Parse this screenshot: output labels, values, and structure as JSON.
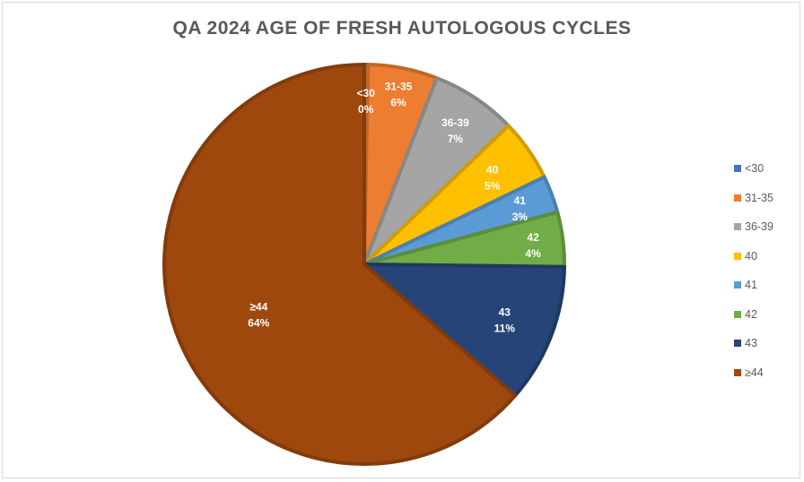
{
  "chart_data": {
    "type": "pie",
    "title": "QA 2024 AGE OF FRESH AUTOLOGOUS CYCLES",
    "categories": [
      "<30",
      "31-35",
      "36-39",
      "40",
      "41",
      "42",
      "43",
      "≥44"
    ],
    "values": [
      0.3,
      5.6,
      6.9,
      5.0,
      3.0,
      4.4,
      11.2,
      63.6
    ],
    "data_labels": [
      "0%",
      "6%",
      "7%",
      "5%",
      "3%",
      "4%",
      "11%",
      "64%"
    ],
    "colors": [
      "#4472C4",
      "#ED7D31",
      "#A5A5A5",
      "#FFC000",
      "#5B9BD5",
      "#70AD47",
      "#264478",
      "#9E480E"
    ],
    "start_angle_deg": 0,
    "direction": "clockwise",
    "legend_position": "right"
  }
}
